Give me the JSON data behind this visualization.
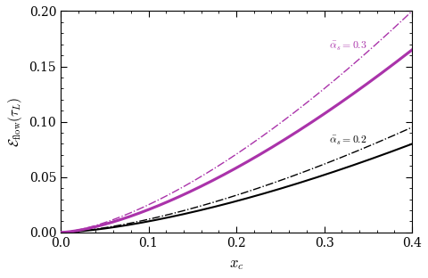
{
  "xmin": 0.0,
  "xmax": 0.4,
  "ymin": 0.0,
  "ymax": 0.2,
  "xlabel": "$x_c$",
  "ylabel": "$\\mathcal{E}_{\\mathrm{flow}}(\\tau_L)$",
  "label_02": "$\\bar{\\alpha}_s=0.2$",
  "label_03": "$\\bar{\\alpha}_s=0.3$",
  "xticks": [
    0.0,
    0.1,
    0.2,
    0.3,
    0.4
  ],
  "yticks": [
    0.0,
    0.05,
    0.1,
    0.15,
    0.2
  ],
  "color_black": "black",
  "color_purple": "#AA33AA",
  "solid_lw": 1.5,
  "dashdot_lw": 1.0,
  "background_color": "#ffffff",
  "k_solid_02": 0.2018,
  "k_solid_03": 0.4149,
  "k_dashdot_02": 0.2375,
  "k_dashdot_03": 0.5,
  "power": 1.5
}
